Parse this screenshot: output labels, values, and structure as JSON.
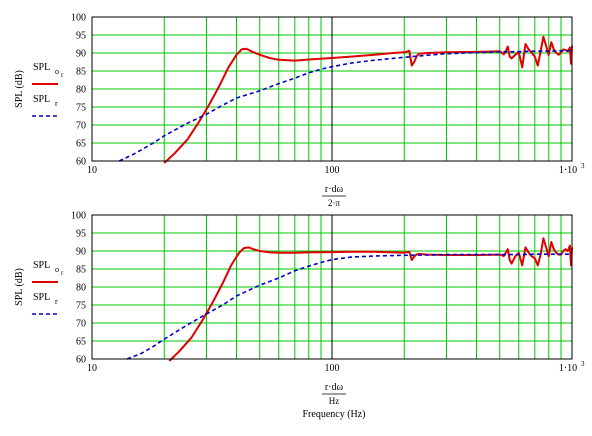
{
  "chart_data": [
    {
      "type": "line",
      "x_scale": "log",
      "xlim": [
        10,
        1000
      ],
      "ylim": [
        60,
        100
      ],
      "ylabel": "SPL (dB)",
      "xlabel_line1": "r·dω",
      "xlabel_line2": "2·π",
      "x_ticklabels": [
        "10",
        "100",
        "1·10"
      ],
      "x_tick_sup": "3",
      "y_ticklabels": [
        "60",
        "65",
        "70",
        "75",
        "80",
        "85",
        "90",
        "95",
        "100"
      ],
      "grid": true,
      "legend": [
        {
          "label": "SPL",
          "sub": "o",
          "subsub": "r",
          "color": "#e00000",
          "style": "solid"
        },
        {
          "label": "SPL",
          "sub": "r",
          "subsub": "",
          "color": "#0000cc",
          "style": "dashed"
        }
      ],
      "series": [
        {
          "label_ref": 0,
          "color": "#e00000",
          "x": [
            20,
            22,
            25,
            28,
            31,
            34,
            37,
            40,
            42,
            44,
            46,
            50,
            55,
            60,
            70,
            80,
            100,
            120,
            150,
            180,
            200,
            210,
            215,
            220,
            225,
            230,
            250,
            300,
            400,
            500,
            520,
            530,
            540,
            550,
            560,
            580,
            600,
            620,
            640,
            660,
            680,
            700,
            720,
            740,
            760,
            780,
            800,
            820,
            840,
            860,
            880,
            900,
            920,
            940,
            960,
            980,
            990,
            1000
          ],
          "y": [
            59,
            62,
            66,
            71,
            76,
            81,
            86,
            89.5,
            91,
            91.2,
            90.5,
            89.5,
            88.6,
            88.1,
            87.9,
            88.2,
            88.6,
            89.0,
            89.5,
            90.0,
            90.2,
            90.6,
            86.5,
            87.5,
            89.0,
            89.8,
            90.0,
            90.2,
            90.3,
            90.5,
            89.6,
            90.5,
            91.8,
            89.0,
            88.5,
            89.5,
            90.3,
            86.0,
            92.5,
            91.0,
            90.0,
            89.0,
            86.5,
            90.5,
            94.5,
            92.0,
            89.5,
            93.0,
            91.0,
            90.0,
            89.5,
            90.2,
            91.0,
            90.8,
            90.5,
            91.5,
            87.0,
            92.0
          ]
        },
        {
          "label_ref": 1,
          "color": "#0000cc",
          "x": [
            13,
            15,
            18,
            20,
            25,
            30,
            35,
            40,
            50,
            60,
            70,
            80,
            90,
            100,
            120,
            150,
            200,
            250,
            300,
            400,
            500,
            600,
            700,
            800,
            900,
            1000
          ],
          "y": [
            60,
            62,
            65,
            67,
            70.5,
            73,
            75.5,
            77.5,
            79.5,
            81.5,
            83,
            84.5,
            85.5,
            86.2,
            87.2,
            88.0,
            88.8,
            89.4,
            89.8,
            90.1,
            90.3,
            90.4,
            90.5,
            90.5,
            90.6,
            90.6
          ]
        }
      ]
    },
    {
      "type": "line",
      "x_scale": "log",
      "xlim": [
        10,
        1000
      ],
      "ylim": [
        60,
        100
      ],
      "ylabel": "SPL (dB)",
      "xlabel_line1": "r·dω",
      "xlabel_line2": "Hz",
      "xlabel_line3": "Frequency (Hz)",
      "x_ticklabels": [
        "10",
        "100",
        "1·10"
      ],
      "x_tick_sup": "3",
      "y_ticklabels": [
        "60",
        "65",
        "70",
        "75",
        "80",
        "85",
        "90",
        "95",
        "100"
      ],
      "grid": true,
      "legend": [
        {
          "label": "SPL",
          "sub": "o",
          "subsub": "r",
          "color": "#e00000",
          "style": "solid"
        },
        {
          "label": "SPL",
          "sub": "r",
          "subsub": "",
          "color": "#0000cc",
          "style": "dashed"
        }
      ],
      "series": [
        {
          "label_ref": 0,
          "color": "#e00000",
          "x": [
            21,
            23,
            26,
            29,
            32,
            35,
            38,
            41,
            43,
            45,
            47,
            50,
            55,
            60,
            70,
            80,
            100,
            120,
            150,
            180,
            200,
            210,
            215,
            220,
            225,
            230,
            250,
            300,
            400,
            500,
            520,
            530,
            540,
            550,
            560,
            580,
            600,
            620,
            640,
            660,
            680,
            700,
            720,
            740,
            760,
            780,
            800,
            820,
            840,
            860,
            880,
            900,
            920,
            940,
            960,
            980,
            990,
            1000
          ],
          "y": [
            59,
            62,
            66,
            71,
            76,
            81,
            86,
            89.5,
            90.8,
            91.0,
            90.5,
            90.0,
            89.6,
            89.5,
            89.5,
            89.6,
            89.7,
            89.8,
            89.8,
            89.6,
            89.5,
            89.8,
            87.5,
            88.5,
            89.0,
            89.2,
            89.0,
            88.9,
            88.9,
            89.0,
            88.6,
            89.5,
            90.5,
            87.5,
            86.5,
            88.5,
            89.5,
            86.0,
            91.0,
            89.5,
            88.5,
            88.0,
            86.0,
            89.0,
            93.5,
            91.0,
            88.5,
            92.5,
            90.5,
            89.5,
            89.0,
            89.0,
            90.0,
            90.5,
            90.0,
            91.5,
            86.0,
            91.0
          ]
        },
        {
          "label_ref": 1,
          "color": "#0000cc",
          "x": [
            14,
            16,
            18,
            20,
            25,
            30,
            35,
            40,
            50,
            60,
            70,
            80,
            90,
            100,
            120,
            150,
            200,
            250,
            300,
            400,
            500,
            600,
            700,
            800,
            900,
            1000
          ],
          "y": [
            60,
            61.5,
            63.5,
            65.5,
            69.5,
            72.5,
            75,
            77.5,
            80.5,
            82.5,
            84.5,
            85.8,
            86.8,
            87.6,
            88.3,
            88.6,
            88.8,
            88.9,
            89.0,
            89.0,
            89.0,
            89.0,
            89.1,
            89.1,
            89.1,
            89.1
          ]
        }
      ]
    }
  ]
}
